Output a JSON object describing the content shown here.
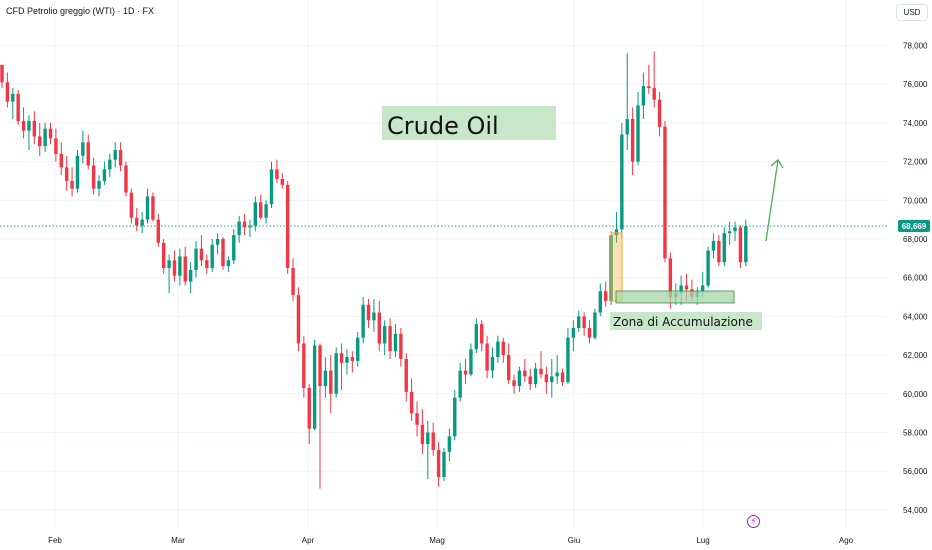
{
  "header": {
    "symbol": "CFD Petrolio greggio (WTI) · 1D · FX",
    "currency": "USD"
  },
  "annotations": {
    "title_label": "Crude Oil",
    "zone_label": "Zona di Accumulazione",
    "last_price": "68,669",
    "alert_icon": "lightning-bolt-icon"
  },
  "colors": {
    "up": "#089981",
    "down": "#f23645",
    "label_bg": "#c8e6c9",
    "zone_fill": "#a5d6a7",
    "zone_border": "#388e3c",
    "orange_box": "#f9a825",
    "arrow": "#4caf50"
  },
  "chart_data": {
    "type": "candlestick",
    "title": "CFD Petrolio greggio (WTI) · 1D · FX",
    "y_axis": {
      "ticks": [
        "78,000",
        "76,000",
        "74,000",
        "72,000",
        "70,000",
        "68,000",
        "66,000",
        "64,000",
        "62,000",
        "60,000",
        "58,000",
        "56,000",
        "54,000"
      ],
      "range": [
        53.5,
        79.2
      ]
    },
    "x_axis": {
      "ticks": [
        "Feb",
        "Mar",
        "Apr",
        "Mag",
        "Giu",
        "Lug",
        "Ago"
      ]
    },
    "last_price": 68.669,
    "candles": [
      [
        77.0,
        77.0,
        75.8,
        76.1
      ],
      [
        76.1,
        76.6,
        74.8,
        75.1
      ],
      [
        75.1,
        75.8,
        74.2,
        75.5
      ],
      [
        75.5,
        75.7,
        73.9,
        74.1
      ],
      [
        74.1,
        74.8,
        73.2,
        73.6
      ],
      [
        73.6,
        74.4,
        72.6,
        74.1
      ],
      [
        74.1,
        74.6,
        72.9,
        73.3
      ],
      [
        73.3,
        74.0,
        72.3,
        72.8
      ],
      [
        72.8,
        74.0,
        72.5,
        73.7
      ],
      [
        73.7,
        74.0,
        72.9,
        73.2
      ],
      [
        73.2,
        73.7,
        72.0,
        72.4
      ],
      [
        72.4,
        73.0,
        71.3,
        71.7
      ],
      [
        71.7,
        72.3,
        70.5,
        71.0
      ],
      [
        71.0,
        71.7,
        70.2,
        70.6
      ],
      [
        70.6,
        72.6,
        70.4,
        72.3
      ],
      [
        72.3,
        73.6,
        71.9,
        73.0
      ],
      [
        73.0,
        73.4,
        71.6,
        71.8
      ],
      [
        71.8,
        72.2,
        70.3,
        70.6
      ],
      [
        70.6,
        71.3,
        70.2,
        71.0
      ],
      [
        71.0,
        72.0,
        70.8,
        71.6
      ],
      [
        71.6,
        72.4,
        71.2,
        72.1
      ],
      [
        72.1,
        73.0,
        71.7,
        72.6
      ],
      [
        72.6,
        73.0,
        71.5,
        71.8
      ],
      [
        71.8,
        72.0,
        70.2,
        70.4
      ],
      [
        70.4,
        70.6,
        68.8,
        69.1
      ],
      [
        69.1,
        69.6,
        68.4,
        68.7
      ],
      [
        68.7,
        69.4,
        68.3,
        69.0
      ],
      [
        69.0,
        70.6,
        68.8,
        70.2
      ],
      [
        70.2,
        70.4,
        68.9,
        69.0
      ],
      [
        69.0,
        69.3,
        67.6,
        67.8
      ],
      [
        67.8,
        68.0,
        66.2,
        66.5
      ],
      [
        66.5,
        67.2,
        65.2,
        66.9
      ],
      [
        66.9,
        67.4,
        65.8,
        66.1
      ],
      [
        66.1,
        67.5,
        65.6,
        67.1
      ],
      [
        67.1,
        67.6,
        65.6,
        65.8
      ],
      [
        65.8,
        66.8,
        65.2,
        66.4
      ],
      [
        66.4,
        67.9,
        66.0,
        67.5
      ],
      [
        67.5,
        68.2,
        66.6,
        66.9
      ],
      [
        66.9,
        67.2,
        66.2,
        66.5
      ],
      [
        66.5,
        68.0,
        66.3,
        67.7
      ],
      [
        67.7,
        68.3,
        67.2,
        68.0
      ],
      [
        68.0,
        68.1,
        66.4,
        66.6
      ],
      [
        66.6,
        67.1,
        66.3,
        66.9
      ],
      [
        66.9,
        68.5,
        66.7,
        68.2
      ],
      [
        68.2,
        69.2,
        67.8,
        68.9
      ],
      [
        68.9,
        69.3,
        68.2,
        68.6
      ],
      [
        68.6,
        69.0,
        68.1,
        68.7
      ],
      [
        68.7,
        70.2,
        68.4,
        69.9
      ],
      [
        69.9,
        70.3,
        69.0,
        69.1
      ],
      [
        69.1,
        70.0,
        68.8,
        69.8
      ],
      [
        69.8,
        72.0,
        69.6,
        71.6
      ],
      [
        71.6,
        72.1,
        70.9,
        71.1
      ],
      [
        71.1,
        71.4,
        70.6,
        70.8
      ],
      [
        70.8,
        71.0,
        66.2,
        66.5
      ],
      [
        66.5,
        67.0,
        64.8,
        65.1
      ],
      [
        65.1,
        65.5,
        62.2,
        62.6
      ],
      [
        62.6,
        63.0,
        59.8,
        60.3
      ],
      [
        60.3,
        60.5,
        57.4,
        58.2
      ],
      [
        58.2,
        62.8,
        58.1,
        62.5
      ],
      [
        62.5,
        62.6,
        55.1,
        60.4
      ],
      [
        60.4,
        61.9,
        59.8,
        61.2
      ],
      [
        61.2,
        62.0,
        59.0,
        60.0
      ],
      [
        60.0,
        62.4,
        59.8,
        62.1
      ],
      [
        62.1,
        62.6,
        60.2,
        61.6
      ],
      [
        61.6,
        62.3,
        61.0,
        61.9
      ],
      [
        61.9,
        62.2,
        61.1,
        61.7
      ],
      [
        61.7,
        63.2,
        61.4,
        62.9
      ],
      [
        62.9,
        65.0,
        62.6,
        64.6
      ],
      [
        64.6,
        64.9,
        63.4,
        63.8
      ],
      [
        63.8,
        64.9,
        63.2,
        64.2
      ],
      [
        64.2,
        64.8,
        62.2,
        62.6
      ],
      [
        62.6,
        63.8,
        62.0,
        63.5
      ],
      [
        63.5,
        63.9,
        61.8,
        62.2
      ],
      [
        62.2,
        63.6,
        61.9,
        63.1
      ],
      [
        63.1,
        63.4,
        61.4,
        61.8
      ],
      [
        61.8,
        62.1,
        59.6,
        60.1
      ],
      [
        60.1,
        60.8,
        58.6,
        59.0
      ],
      [
        59.0,
        59.6,
        57.8,
        58.4
      ],
      [
        58.4,
        59.2,
        56.9,
        57.4
      ],
      [
        57.4,
        58.6,
        55.6,
        58.0
      ],
      [
        58.0,
        58.5,
        56.8,
        57.1
      ],
      [
        57.1,
        57.5,
        55.2,
        55.7
      ],
      [
        55.7,
        57.2,
        55.5,
        57.0
      ],
      [
        57.0,
        58.2,
        56.5,
        57.8
      ],
      [
        57.8,
        60.2,
        57.6,
        59.8
      ],
      [
        59.8,
        61.6,
        59.6,
        61.2
      ],
      [
        61.2,
        61.8,
        60.5,
        61.0
      ],
      [
        61.0,
        62.6,
        60.9,
        62.3
      ],
      [
        62.3,
        63.9,
        62.1,
        63.6
      ],
      [
        63.6,
        63.8,
        62.2,
        62.6
      ],
      [
        62.6,
        63.0,
        60.8,
        61.2
      ],
      [
        61.2,
        62.4,
        60.8,
        61.9
      ],
      [
        61.9,
        63.0,
        61.6,
        62.7
      ],
      [
        62.7,
        62.9,
        61.6,
        62.0
      ],
      [
        62.0,
        62.6,
        60.5,
        60.7
      ],
      [
        60.7,
        61.0,
        60.0,
        60.4
      ],
      [
        60.4,
        61.4,
        60.1,
        61.2
      ],
      [
        61.2,
        61.8,
        60.6,
        60.9
      ],
      [
        60.9,
        61.3,
        60.2,
        60.5
      ],
      [
        60.5,
        61.6,
        60.3,
        61.3
      ],
      [
        61.3,
        62.2,
        60.8,
        61.0
      ],
      [
        61.0,
        61.4,
        60.0,
        60.6
      ],
      [
        60.6,
        61.8,
        59.8,
        60.9
      ],
      [
        60.9,
        62.0,
        60.5,
        61.1
      ],
      [
        61.1,
        61.3,
        60.4,
        60.6
      ],
      [
        60.6,
        63.4,
        60.5,
        62.9
      ],
      [
        62.9,
        63.8,
        62.2,
        63.4
      ],
      [
        63.4,
        64.3,
        63.2,
        64.0
      ],
      [
        64.0,
        64.2,
        63.0,
        63.4
      ],
      [
        63.4,
        63.8,
        62.6,
        62.9
      ],
      [
        62.9,
        64.4,
        62.8,
        64.2
      ],
      [
        64.2,
        65.7,
        64.0,
        65.3
      ],
      [
        65.3,
        65.8,
        64.5,
        64.8
      ],
      [
        64.8,
        68.4,
        64.6,
        68.2
      ],
      [
        68.2,
        69.4,
        67.8,
        68.5
      ],
      [
        68.5,
        74.0,
        68.0,
        73.4
      ],
      [
        73.4,
        77.6,
        72.6,
        74.2
      ],
      [
        74.2,
        74.8,
        71.3,
        72.0
      ],
      [
        72.0,
        75.6,
        71.8,
        74.9
      ],
      [
        74.9,
        76.6,
        74.2,
        75.9
      ],
      [
        75.9,
        77.0,
        75.5,
        75.8
      ],
      [
        75.8,
        77.7,
        74.8,
        75.2
      ],
      [
        75.2,
        75.6,
        73.3,
        73.8
      ],
      [
        73.8,
        74.1,
        66.8,
        67.0
      ],
      [
        67.0,
        67.3,
        64.4,
        65.0
      ],
      [
        65.0,
        65.7,
        64.6,
        65.2
      ],
      [
        65.2,
        66.1,
        64.6,
        65.6
      ],
      [
        65.6,
        66.2,
        64.8,
        65.4
      ],
      [
        65.4,
        65.9,
        64.8,
        65.0
      ],
      [
        65.0,
        65.5,
        64.6,
        65.3
      ],
      [
        65.3,
        66.3,
        65.0,
        65.6
      ],
      [
        65.6,
        67.6,
        65.5,
        67.4
      ],
      [
        67.4,
        68.3,
        67.0,
        67.9
      ],
      [
        67.9,
        68.2,
        66.6,
        66.8
      ],
      [
        66.8,
        68.6,
        66.6,
        68.3
      ],
      [
        68.3,
        68.9,
        67.7,
        68.4
      ],
      [
        68.4,
        68.9,
        67.9,
        68.6
      ],
      [
        68.6,
        68.7,
        66.5,
        66.8
      ],
      [
        66.8,
        69.0,
        66.6,
        68.669
      ]
    ]
  }
}
